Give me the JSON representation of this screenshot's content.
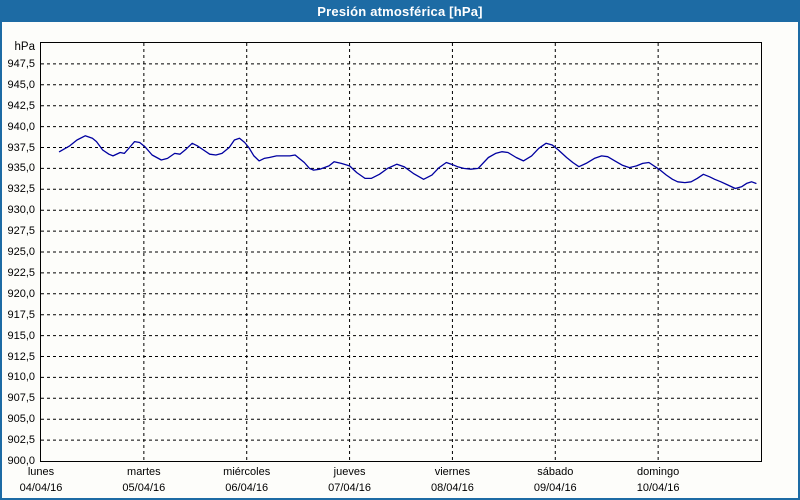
{
  "window": {
    "title": "Presión atmosférica [hPa]"
  },
  "colors": {
    "titlebar_bg": "#1d6ba4",
    "titlebar_text": "#ffffff",
    "window_border": "#1d6ba4",
    "plot_border": "#000000",
    "grid": "#000000",
    "line": "#0000a0",
    "background": "#fdfdfa"
  },
  "chart_data": {
    "type": "line",
    "title": "Presión atmosférica [hPa]",
    "xlabel": "",
    "ylabel": "hPa",
    "ylim": [
      900,
      950
    ],
    "ytick_step": 2.5,
    "ytick_labels": [
      "947,5",
      "945,0",
      "942,5",
      "940,0",
      "937,5",
      "935,0",
      "932,5",
      "930,0",
      "927,5",
      "925,0",
      "922,5",
      "920,0",
      "917,5",
      "915,0",
      "912,5",
      "910,0",
      "907,5",
      "905,0",
      "902,5",
      "900,0"
    ],
    "xlim_days": [
      0,
      7
    ],
    "grid": "dashed",
    "legend_position": "none",
    "x_axis_days": [
      {
        "name": "lunes",
        "date": "04/04/16"
      },
      {
        "name": "martes",
        "date": "05/04/16"
      },
      {
        "name": "miércoles",
        "date": "06/04/16"
      },
      {
        "name": "jueves",
        "date": "07/04/16"
      },
      {
        "name": "viernes",
        "date": "08/04/16"
      },
      {
        "name": "sábado",
        "date": "09/04/16"
      },
      {
        "name": "domingo",
        "date": "10/04/16"
      }
    ],
    "series": [
      {
        "name": "Presión atmosférica",
        "unit": "hPa",
        "color": "#0000a0",
        "points_day_hpa": [
          [
            0.18,
            937.0
          ],
          [
            0.28,
            937.7
          ],
          [
            0.35,
            938.4
          ],
          [
            0.43,
            938.9
          ],
          [
            0.5,
            938.6
          ],
          [
            0.54,
            938.2
          ],
          [
            0.6,
            937.2
          ],
          [
            0.66,
            936.7
          ],
          [
            0.7,
            936.5
          ],
          [
            0.77,
            936.9
          ],
          [
            0.81,
            936.8
          ],
          [
            0.86,
            937.5
          ],
          [
            0.91,
            938.2
          ],
          [
            0.96,
            938.1
          ],
          [
            1.01,
            937.6
          ],
          [
            1.08,
            936.6
          ],
          [
            1.17,
            936.0
          ],
          [
            1.23,
            936.2
          ],
          [
            1.3,
            936.8
          ],
          [
            1.35,
            936.7
          ],
          [
            1.41,
            937.3
          ],
          [
            1.47,
            938.0
          ],
          [
            1.52,
            937.7
          ],
          [
            1.58,
            937.2
          ],
          [
            1.64,
            936.7
          ],
          [
            1.7,
            936.6
          ],
          [
            1.76,
            936.8
          ],
          [
            1.83,
            937.5
          ],
          [
            1.88,
            938.4
          ],
          [
            1.93,
            938.6
          ],
          [
            1.98,
            938.1
          ],
          [
            2.02,
            937.5
          ],
          [
            2.07,
            936.5
          ],
          [
            2.12,
            935.9
          ],
          [
            2.17,
            936.2
          ],
          [
            2.22,
            936.3
          ],
          [
            2.29,
            936.5
          ],
          [
            2.36,
            936.5
          ],
          [
            2.42,
            936.5
          ],
          [
            2.47,
            936.6
          ],
          [
            2.51,
            936.2
          ],
          [
            2.56,
            935.7
          ],
          [
            2.61,
            935.0
          ],
          [
            2.65,
            934.8
          ],
          [
            2.71,
            934.9
          ],
          [
            2.8,
            935.3
          ],
          [
            2.85,
            935.8
          ],
          [
            2.92,
            935.6
          ],
          [
            3.0,
            935.3
          ],
          [
            3.07,
            934.5
          ],
          [
            3.15,
            933.8
          ],
          [
            3.21,
            933.8
          ],
          [
            3.29,
            934.3
          ],
          [
            3.37,
            935.0
          ],
          [
            3.46,
            935.5
          ],
          [
            3.53,
            935.2
          ],
          [
            3.62,
            934.4
          ],
          [
            3.72,
            933.7
          ],
          [
            3.8,
            934.2
          ],
          [
            3.87,
            935.1
          ],
          [
            3.94,
            935.7
          ],
          [
            3.99,
            935.5
          ],
          [
            4.05,
            935.2
          ],
          [
            4.11,
            935.0
          ],
          [
            4.18,
            934.9
          ],
          [
            4.25,
            935.0
          ],
          [
            4.35,
            936.3
          ],
          [
            4.42,
            936.8
          ],
          [
            4.48,
            937.0
          ],
          [
            4.54,
            936.9
          ],
          [
            4.62,
            936.3
          ],
          [
            4.69,
            935.9
          ],
          [
            4.77,
            936.5
          ],
          [
            4.84,
            937.4
          ],
          [
            4.91,
            938.0
          ],
          [
            4.97,
            937.8
          ],
          [
            5.03,
            937.2
          ],
          [
            5.11,
            936.3
          ],
          [
            5.17,
            935.7
          ],
          [
            5.23,
            935.2
          ],
          [
            5.3,
            935.6
          ],
          [
            5.38,
            936.2
          ],
          [
            5.45,
            936.5
          ],
          [
            5.51,
            936.4
          ],
          [
            5.58,
            935.9
          ],
          [
            5.65,
            935.4
          ],
          [
            5.72,
            935.1
          ],
          [
            5.79,
            935.3
          ],
          [
            5.85,
            935.6
          ],
          [
            5.91,
            935.7
          ],
          [
            6.02,
            934.8
          ],
          [
            6.08,
            934.2
          ],
          [
            6.14,
            933.7
          ],
          [
            6.19,
            933.4
          ],
          [
            6.26,
            933.3
          ],
          [
            6.32,
            933.4
          ],
          [
            6.38,
            933.8
          ],
          [
            6.44,
            934.3
          ],
          [
            6.5,
            934.0
          ],
          [
            6.55,
            933.7
          ],
          [
            6.61,
            933.4
          ],
          [
            6.68,
            933.0
          ],
          [
            6.75,
            932.6
          ],
          [
            6.81,
            932.8
          ],
          [
            6.86,
            933.2
          ],
          [
            6.91,
            933.4
          ],
          [
            6.95,
            933.2
          ]
        ]
      }
    ]
  }
}
